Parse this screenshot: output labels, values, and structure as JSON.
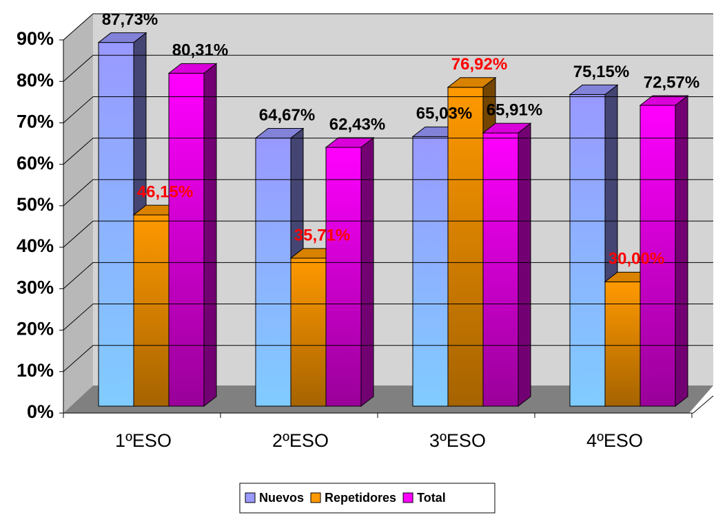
{
  "chart_data": {
    "type": "bar3d",
    "categories": [
      "1ºESO",
      "2ºESO",
      "3ºESO",
      "4ºESO"
    ],
    "series": [
      {
        "name": "Nuevos",
        "color": "#9999ff",
        "label_color": "#000000",
        "values": [
          87.73,
          64.67,
          65.03,
          75.15
        ],
        "value_labels": [
          "87,73%",
          "64,67%",
          "65,03%",
          "75,15%"
        ]
      },
      {
        "name": "Repetidores",
        "color": "#ff9900",
        "label_color": "#ff0000",
        "values": [
          46.15,
          35.71,
          76.92,
          30.0
        ],
        "value_labels": [
          "46,15%",
          "35,71%",
          "76,92%",
          "30,00%"
        ]
      },
      {
        "name": "Total",
        "color": "#ff00ff",
        "label_color": "#000000",
        "values": [
          80.31,
          62.43,
          65.91,
          72.57
        ],
        "value_labels": [
          "80,31%",
          "62,43%",
          "65,91%",
          "72,57%"
        ]
      }
    ],
    "ylim": [
      0,
      90
    ],
    "yticks": [
      {
        "value": 0,
        "label": "0%"
      },
      {
        "value": 10,
        "label": "10%"
      },
      {
        "value": 20,
        "label": "20%"
      },
      {
        "value": 30,
        "label": "30%"
      },
      {
        "value": 40,
        "label": "40%"
      },
      {
        "value": 50,
        "label": "50%"
      },
      {
        "value": 60,
        "label": "60%"
      },
      {
        "value": 70,
        "label": "70%"
      },
      {
        "value": 80,
        "label": "80%"
      },
      {
        "value": 90,
        "label": "90%"
      }
    ],
    "grid": true,
    "legend": "bottom"
  }
}
